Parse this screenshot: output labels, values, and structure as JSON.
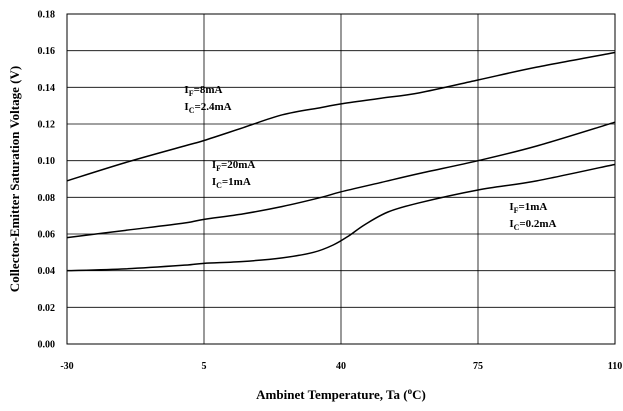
{
  "chart_data": {
    "type": "line",
    "xlabel": "Ambinet Temperature, Ta (°C)",
    "xlabel_parts": {
      "prefix": "Ambinet Temperature, Ta (",
      "sup": "o",
      "suffix": "C)"
    },
    "ylabel": "Collector-Emitter Saturation Voltage (V)",
    "xlim": [
      -30,
      110
    ],
    "ylim": [
      0,
      0.18
    ],
    "x_ticks": [
      -30,
      5,
      40,
      75,
      110
    ],
    "x_tick_labels": [
      "-30",
      "5",
      "40",
      "75",
      "110"
    ],
    "y_ticks": [
      0,
      0.02,
      0.04,
      0.06,
      0.08,
      0.1,
      0.12,
      0.14,
      0.16,
      0.18
    ],
    "y_tick_labels": [
      "0.00",
      "0.02",
      "0.04",
      "0.06",
      "0.08",
      "0.10",
      "0.12",
      "0.14",
      "0.16",
      "0.18"
    ],
    "grid": true,
    "series": [
      {
        "x": [
          -30,
          -15,
          0,
          5,
          15,
          25,
          35,
          40,
          50,
          60,
          75,
          90,
          110
        ],
        "y": [
          0.089,
          0.099,
          0.108,
          0.111,
          0.118,
          0.125,
          0.129,
          0.131,
          0.134,
          0.137,
          0.144,
          0.151,
          0.159
        ]
      },
      {
        "x": [
          -30,
          -15,
          0,
          5,
          15,
          25,
          35,
          40,
          50,
          60,
          75,
          90,
          110
        ],
        "y": [
          0.058,
          0.062,
          0.066,
          0.068,
          0.071,
          0.075,
          0.08,
          0.083,
          0.088,
          0.093,
          0.1,
          0.108,
          0.121
        ]
      },
      {
        "x": [
          -30,
          -15,
          0,
          5,
          15,
          25,
          33,
          38,
          42,
          46,
          52,
          60,
          75,
          90,
          110
        ],
        "y": [
          0.04,
          0.041,
          0.043,
          0.044,
          0.045,
          0.047,
          0.05,
          0.054,
          0.059,
          0.065,
          0.072,
          0.077,
          0.084,
          0.089,
          0.098
        ]
      }
    ],
    "annotations": [
      {
        "lines": [
          {
            "main": "I",
            "sub": "F",
            "rest": "=8mA"
          },
          {
            "main": "I",
            "sub": "C",
            "rest": "=2.4mA"
          }
        ],
        "anchor_x": 0,
        "anchor_y": 0.137
      },
      {
        "lines": [
          {
            "main": "I",
            "sub": "F",
            "rest": "=20mA"
          },
          {
            "main": "I",
            "sub": "C",
            "rest": "=1mA"
          }
        ],
        "anchor_x": 7,
        "anchor_y": 0.096
      },
      {
        "lines": [
          {
            "main": "I",
            "sub": "F",
            "rest": "=1mA"
          },
          {
            "main": "I",
            "sub": "C",
            "rest": "=0.2mA"
          }
        ],
        "anchor_x": 83,
        "anchor_y": 0.073
      }
    ]
  }
}
